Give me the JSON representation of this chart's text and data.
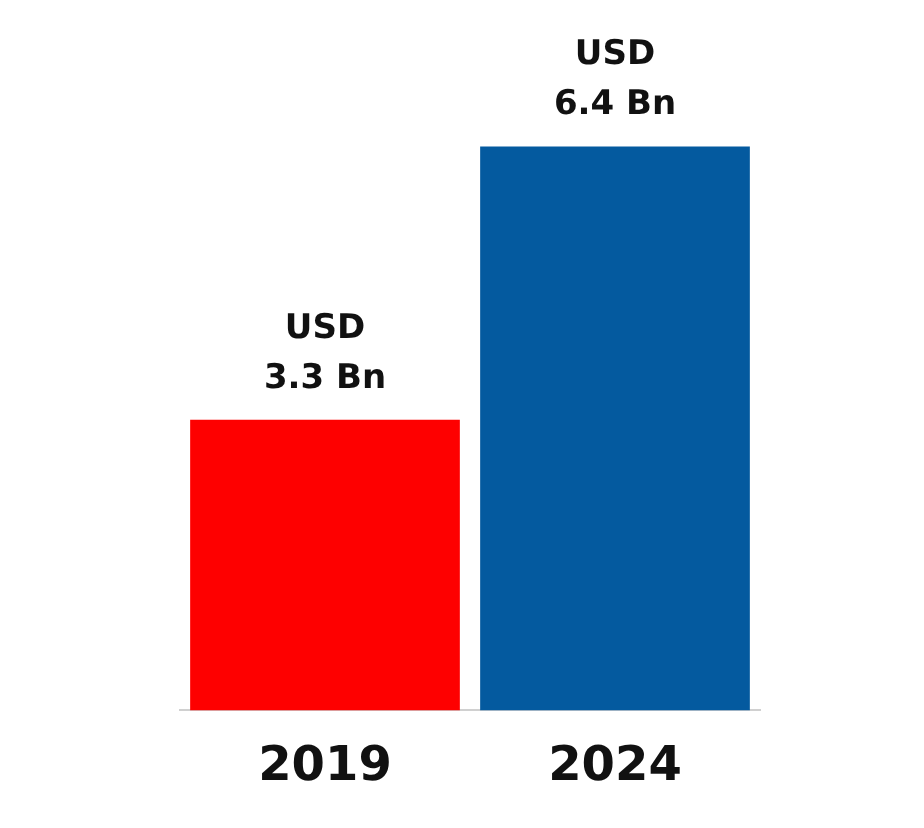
{
  "chart_data": {
    "type": "bar",
    "categories": [
      "2019",
      "2024"
    ],
    "values": [
      3.3,
      6.4
    ],
    "colors": [
      "#fe0000",
      "#045a9f"
    ],
    "tick_labels": "x",
    "value_labels": [
      "USD\n3.3 Bn",
      "USD\n6.4 Bn"
    ]
  }
}
